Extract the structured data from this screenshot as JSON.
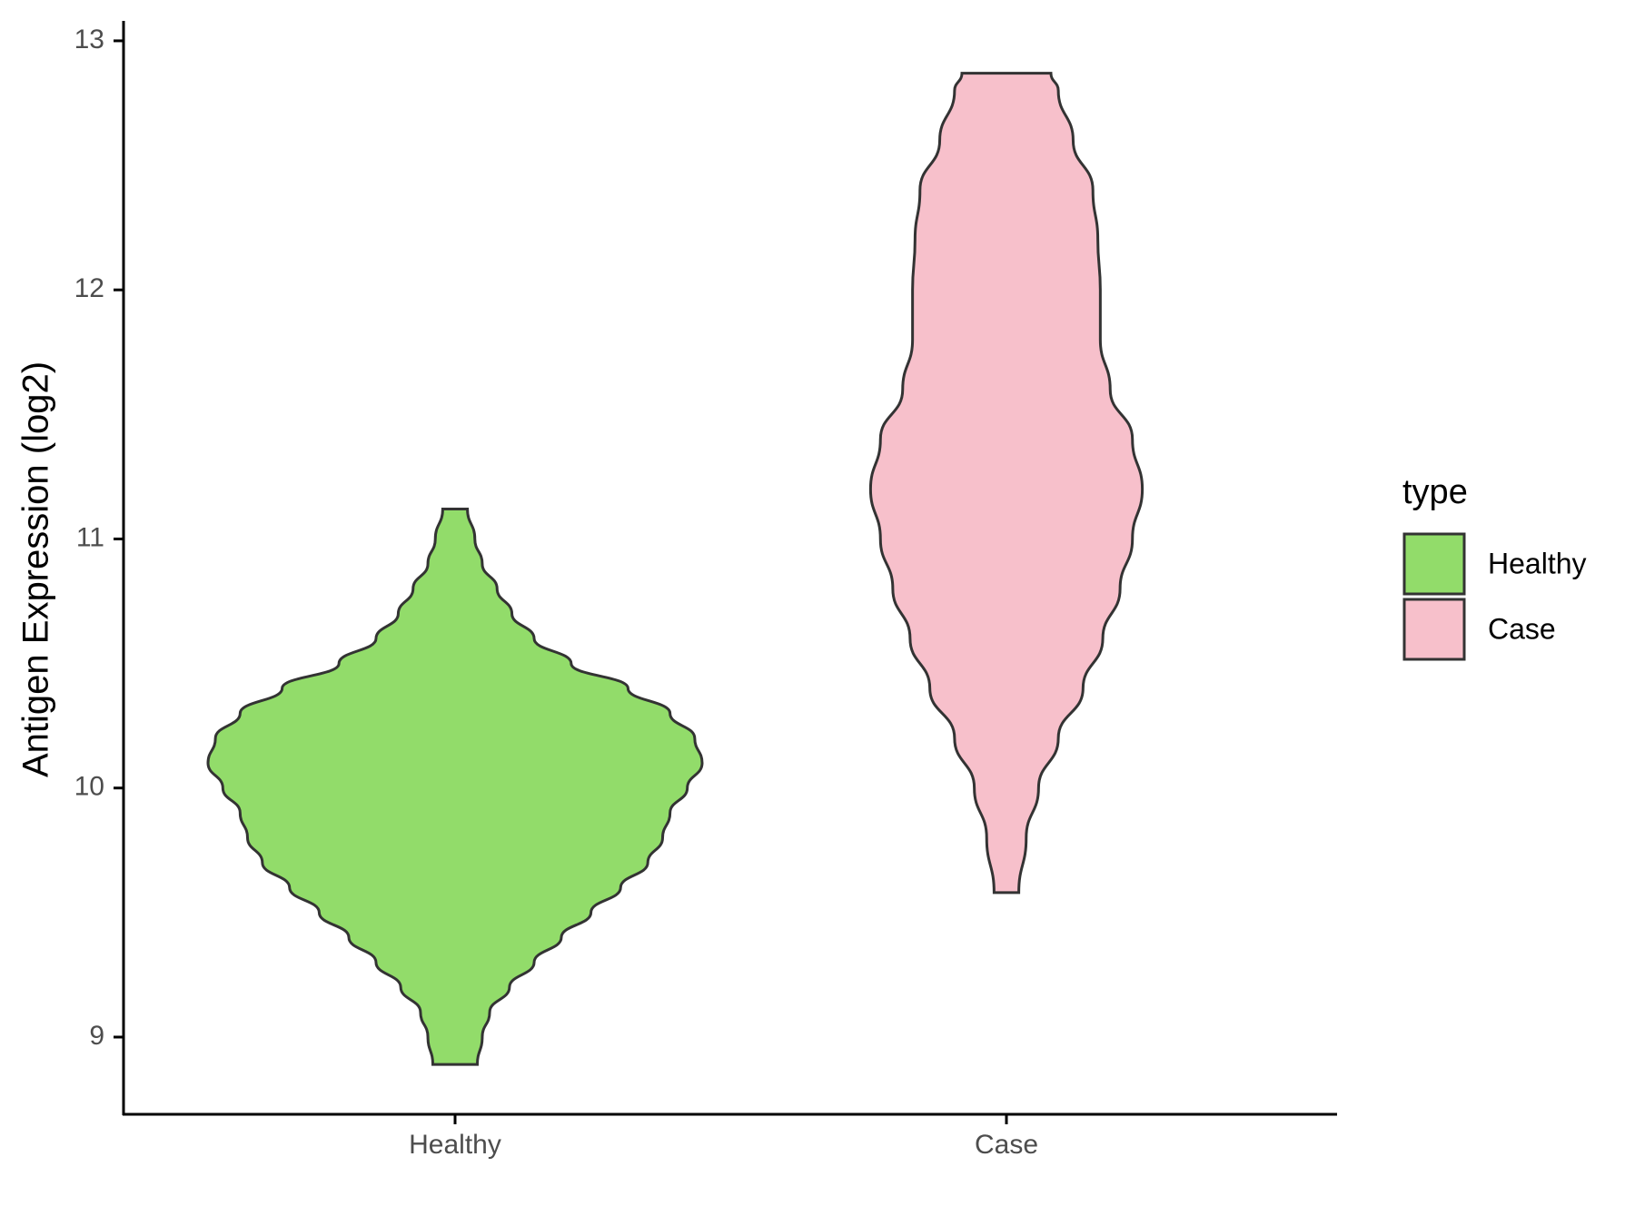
{
  "chart_data": {
    "type": "violin",
    "y_label": "Antigen Expression (log2)",
    "legend_title": "type",
    "categories": [
      "Healthy",
      "Case"
    ],
    "ylim": [
      8.69,
      13.08
    ],
    "yticks": [
      9,
      10,
      11,
      12,
      13
    ],
    "series": [
      {
        "name": "Healthy",
        "color": "#92dc6a",
        "y": [
          11.12,
          11.0,
          10.9,
          10.8,
          10.7,
          10.6,
          10.5,
          10.4,
          10.3,
          10.2,
          10.1,
          10.0,
          9.9,
          9.8,
          9.7,
          9.6,
          9.5,
          9.4,
          9.3,
          9.2,
          9.1,
          9.0,
          8.89
        ],
        "density": [
          0.05,
          0.08,
          0.11,
          0.17,
          0.23,
          0.32,
          0.47,
          0.7,
          0.87,
          0.97,
          1.0,
          0.94,
          0.87,
          0.84,
          0.78,
          0.67,
          0.55,
          0.43,
          0.32,
          0.22,
          0.14,
          0.11,
          0.09
        ]
      },
      {
        "name": "Case",
        "color": "#f7c0cb",
        "y": [
          12.87,
          12.8,
          12.6,
          12.4,
          12.2,
          12.0,
          11.8,
          11.6,
          11.4,
          11.2,
          11.0,
          10.8,
          10.6,
          10.4,
          10.2,
          10.0,
          9.8,
          9.58
        ],
        "density": [
          0.18,
          0.21,
          0.27,
          0.35,
          0.37,
          0.38,
          0.38,
          0.42,
          0.51,
          0.55,
          0.51,
          0.46,
          0.39,
          0.31,
          0.21,
          0.13,
          0.08,
          0.05
        ]
      }
    ]
  }
}
